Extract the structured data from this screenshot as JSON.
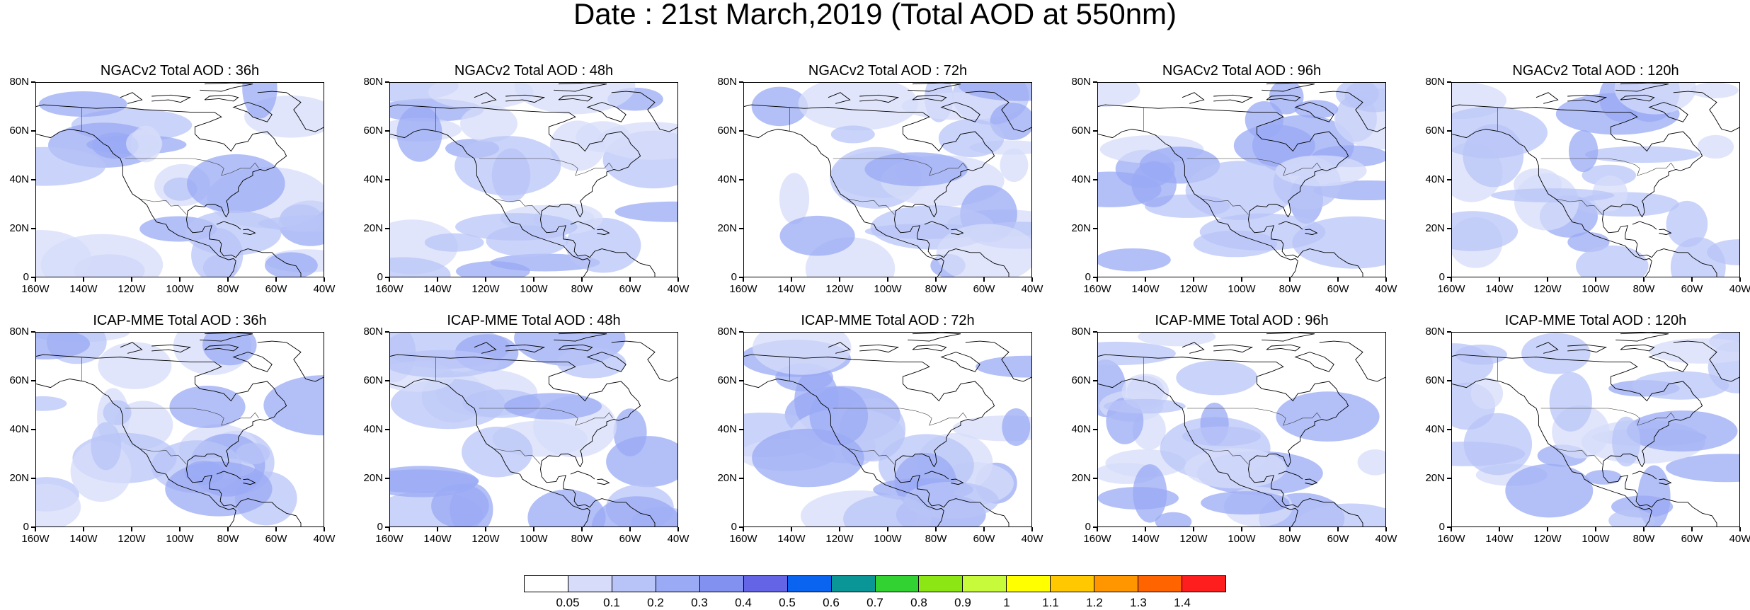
{
  "title": "Date : 21st March,2019 (Total AOD at 550nm)",
  "y_tick_labels": [
    "80N",
    "60N",
    "40N",
    "20N",
    "0"
  ],
  "x_tick_labels": [
    "160W",
    "140W",
    "120W",
    "100W",
    "80W",
    "60W",
    "40W"
  ],
  "map_extent": {
    "lon_min": -160,
    "lon_max": -40,
    "lat_min": 0,
    "lat_max": 80
  },
  "rows": [
    {
      "model": "NGACv2",
      "panels": [
        {
          "title": "NGACv2 Total AOD : 36h"
        },
        {
          "title": "NGACv2 Total AOD : 48h"
        },
        {
          "title": "NGACv2 Total AOD : 72h"
        },
        {
          "title": "NGACv2 Total AOD : 96h"
        },
        {
          "title": "NGACv2 Total AOD : 120h"
        }
      ]
    },
    {
      "model": "ICAP-MME",
      "panels": [
        {
          "title": "ICAP-MME Total AOD : 36h"
        },
        {
          "title": "ICAP-MME Total AOD : 48h"
        },
        {
          "title": "ICAP-MME Total AOD : 72h"
        },
        {
          "title": "ICAP-MME Total AOD : 96h"
        },
        {
          "title": "ICAP-MME Total AOD : 120h"
        }
      ]
    }
  ],
  "colorbar": {
    "labels": [
      "0.05",
      "0.1",
      "0.2",
      "0.3",
      "0.4",
      "0.5",
      "0.6",
      "0.7",
      "0.8",
      "0.9",
      "1",
      "1.1",
      "1.2",
      "1.3",
      "1.4"
    ],
    "colors": [
      "#ffffff",
      "#d6dcf9",
      "#b8c4f7",
      "#9aaaf4",
      "#8290f0",
      "#6464e6",
      "#0a64f0",
      "#0a9696",
      "#32d232",
      "#8ce614",
      "#c8fa3c",
      "#ffff00",
      "#ffc800",
      "#ff9600",
      "#ff6400",
      "#ff1e1e"
    ]
  }
}
